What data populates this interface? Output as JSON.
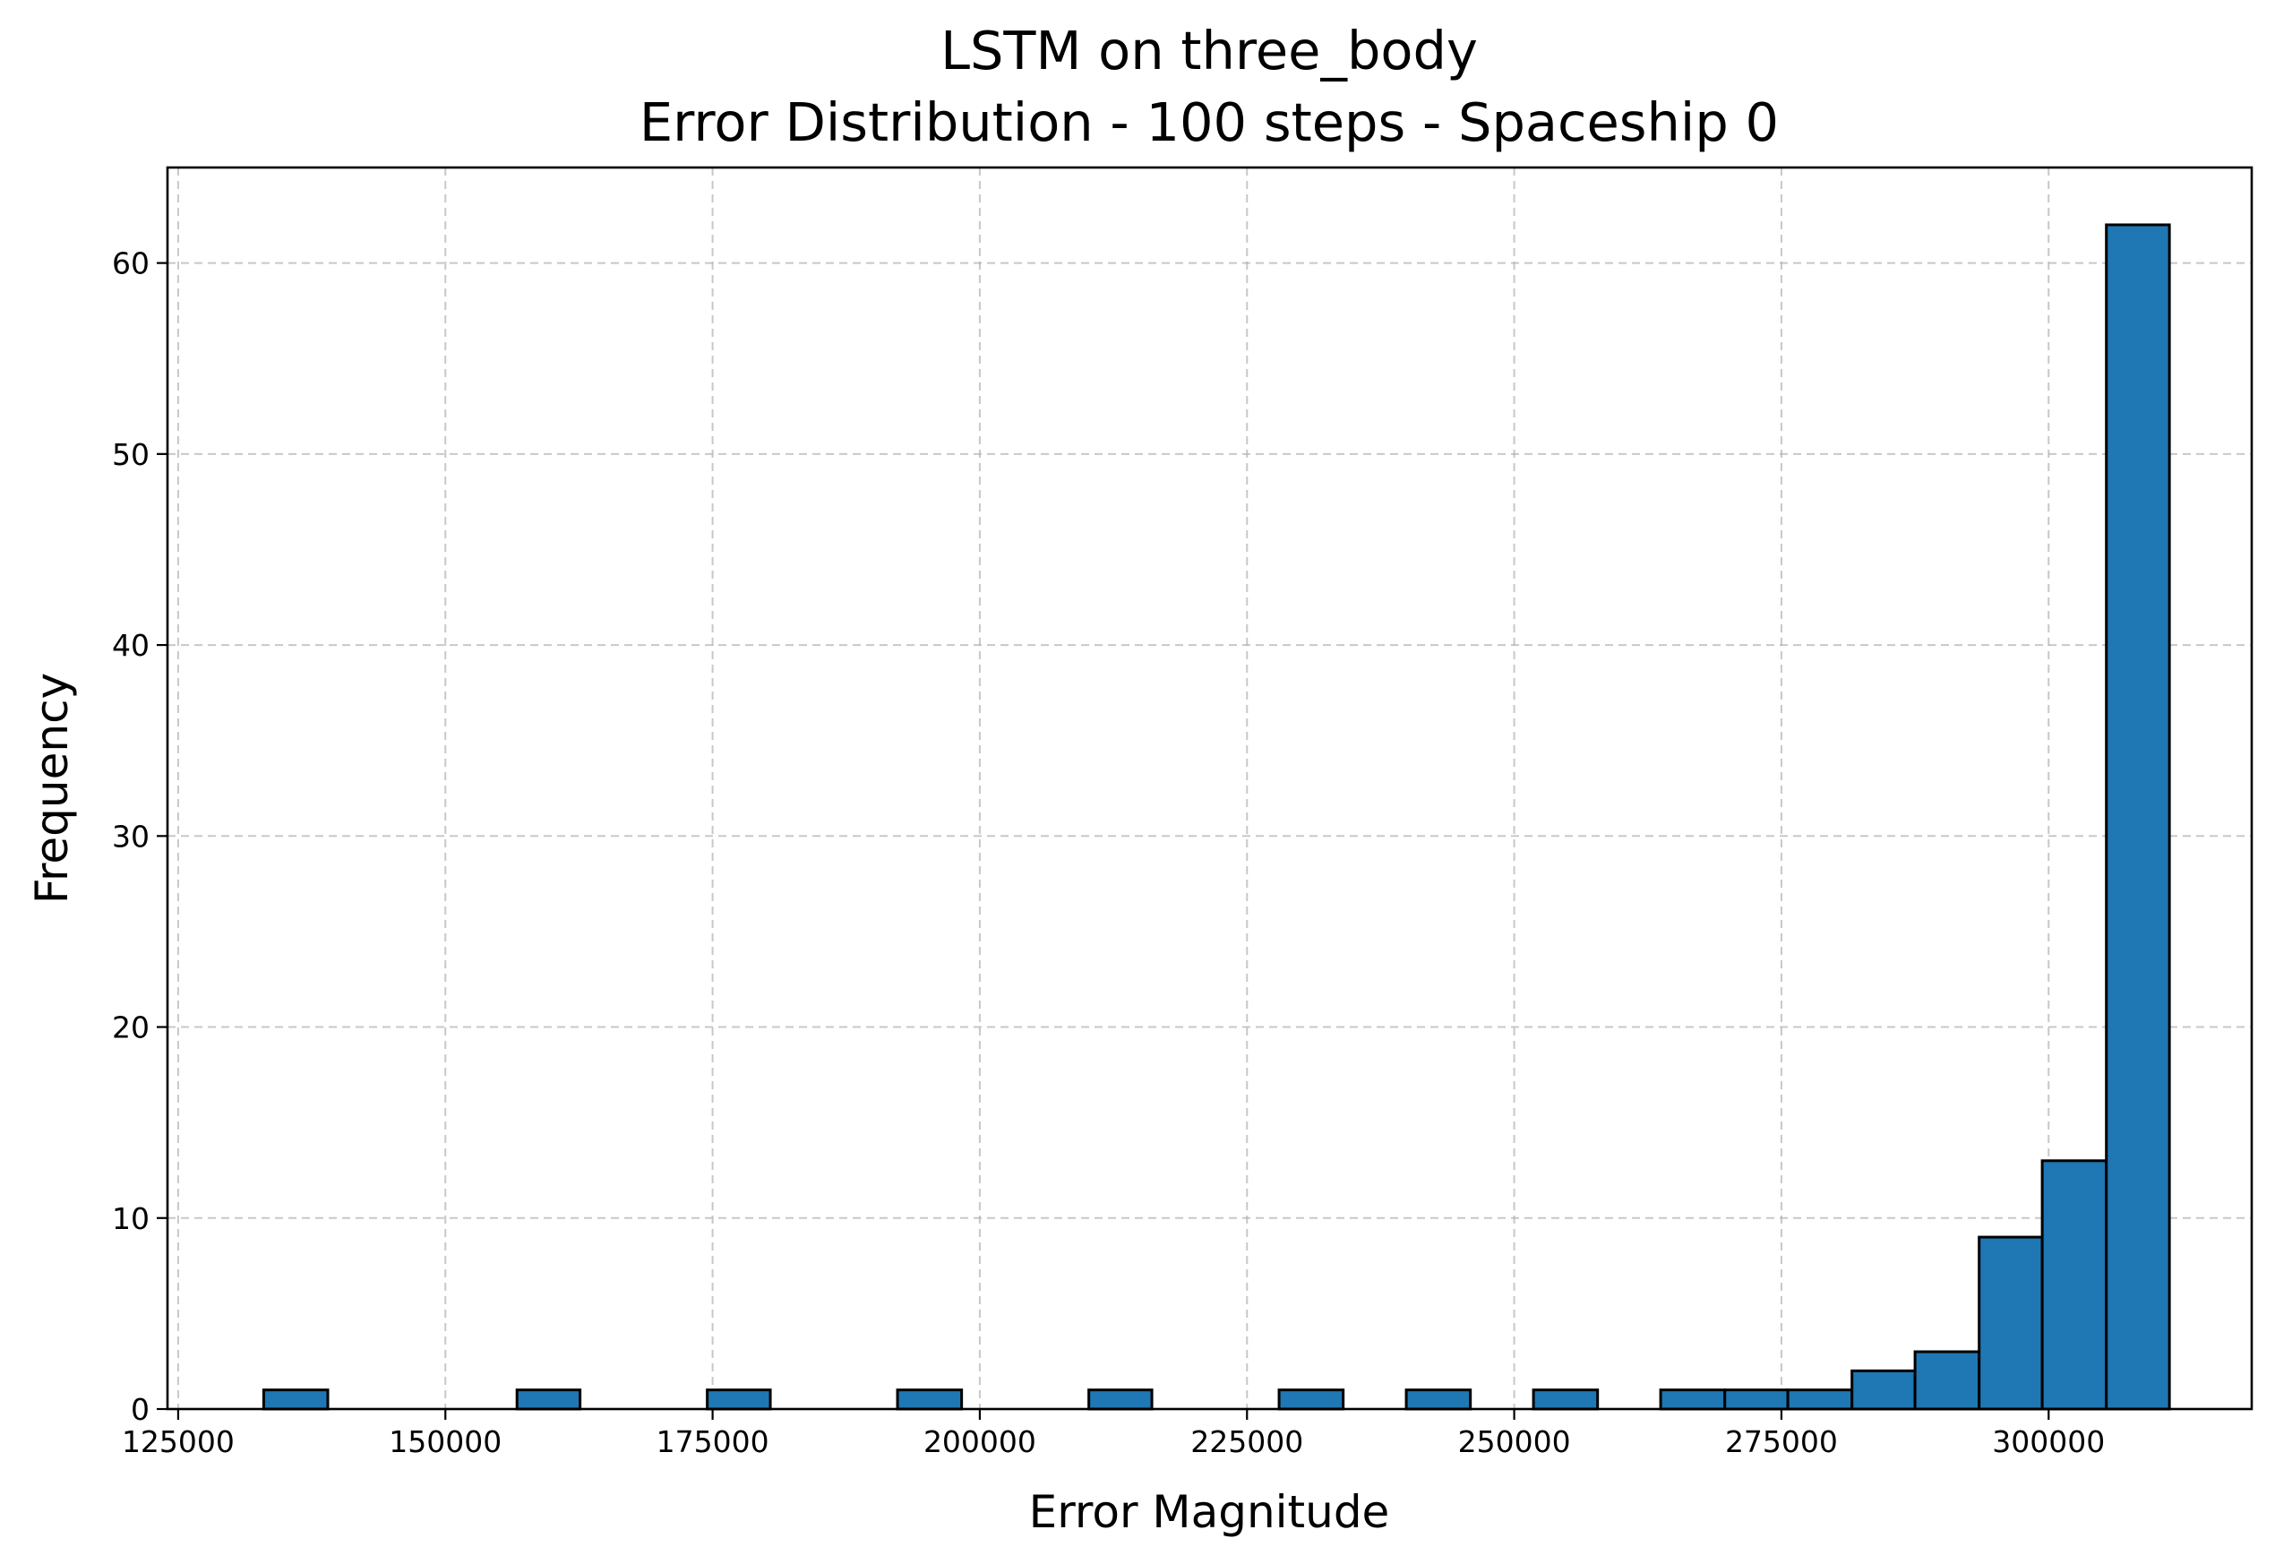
{
  "chart_data": {
    "type": "bar",
    "subtype": "histogram",
    "title": "LSTM on three_body",
    "subtitle": "Error Distribution - 100 steps - Spaceship 0",
    "xlabel": "Error Magnitude",
    "ylabel": "Frequency",
    "xlim": [
      124000,
      319000
    ],
    "ylim": [
      0,
      65
    ],
    "xticks": [
      "125000",
      "150000",
      "175000",
      "200000",
      "225000",
      "250000",
      "275000",
      "300000"
    ],
    "xtick_values": [
      125000,
      150000,
      175000,
      200000,
      225000,
      250000,
      275000,
      300000
    ],
    "yticks": [
      "0",
      "10",
      "20",
      "30",
      "40",
      "50",
      "60"
    ],
    "ytick_values": [
      0,
      10,
      20,
      30,
      40,
      50,
      60
    ],
    "grid": true,
    "bar_color": "#1f77b4",
    "edge_color": "#000000",
    "bins": [
      {
        "start": 133000,
        "end": 139000,
        "count": 1
      },
      {
        "start": 156700,
        "end": 162600,
        "count": 1
      },
      {
        "start": 174500,
        "end": 180400,
        "count": 1
      },
      {
        "start": 192300,
        "end": 198300,
        "count": 1
      },
      {
        "start": 210200,
        "end": 216100,
        "count": 1
      },
      {
        "start": 228000,
        "end": 234000,
        "count": 1
      },
      {
        "start": 239900,
        "end": 245900,
        "count": 1
      },
      {
        "start": 251800,
        "end": 257800,
        "count": 1
      },
      {
        "start": 263700,
        "end": 269700,
        "count": 1
      },
      {
        "start": 269700,
        "end": 275600,
        "count": 1
      },
      {
        "start": 275600,
        "end": 281600,
        "count": 1
      },
      {
        "start": 281600,
        "end": 287500,
        "count": 2
      },
      {
        "start": 287500,
        "end": 293500,
        "count": 3
      },
      {
        "start": 293500,
        "end": 299400,
        "count": 9
      },
      {
        "start": 299400,
        "end": 305400,
        "count": 13
      },
      {
        "start": 305400,
        "end": 311300,
        "count": 62
      }
    ]
  }
}
